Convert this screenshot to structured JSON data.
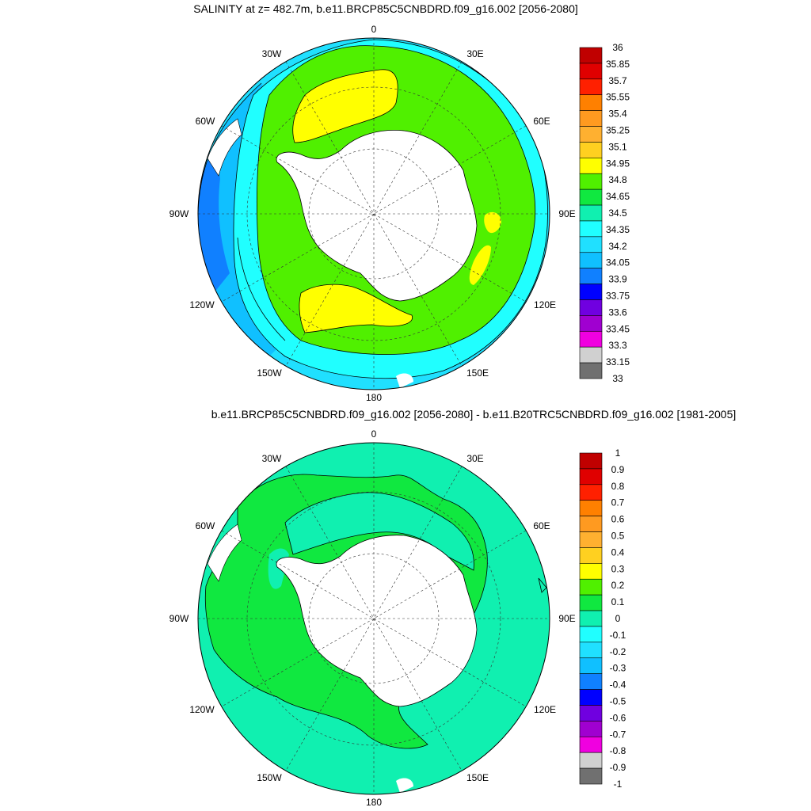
{
  "chart_data": [
    {
      "type": "contour-map",
      "title": "SALINITY at z= 482.7m, b.e11.BRCP85C5CNBDRD.f09_g16.002 [2056-2080]",
      "projection": "south-polar-stereographic",
      "longitude_labels": [
        "0",
        "30E",
        "60E",
        "90E",
        "120E",
        "150E",
        "180",
        "150W",
        "120W",
        "90W",
        "60W",
        "30W"
      ],
      "colorbar": {
        "levels": [
          "36",
          "35.85",
          "35.7",
          "35.55",
          "35.4",
          "35.25",
          "35.1",
          "34.95",
          "34.8",
          "34.65",
          "34.5",
          "34.35",
          "34.2",
          "34.05",
          "33.9",
          "33.75",
          "33.6",
          "33.45",
          "33.3",
          "33.15",
          "33"
        ],
        "colors": [
          "#c00000",
          "#e00000",
          "#ff2000",
          "#ff8000",
          "#ff9a20",
          "#ffb030",
          "#ffd020",
          "#ffff00",
          "#50f000",
          "#10e840",
          "#10f0b0",
          "#20ffff",
          "#20e0ff",
          "#10c0ff",
          "#1080ff",
          "#0000ff",
          "#7000e0",
          "#a000d0",
          "#f000e0",
          "#d0d0d0",
          "#707070"
        ]
      },
      "regions": [
        {
          "range": "34.8-34.95",
          "description": "yellow cores in Weddell gyre, Ross gyre and off East Antarctica"
        },
        {
          "range": "34.65-34.8",
          "description": "green circumpolar ring around continent"
        },
        {
          "range": "34.2-34.65",
          "description": "cyan bands further north"
        },
        {
          "range": "33.9-34.2",
          "description": "blue water near South America"
        }
      ]
    },
    {
      "type": "contour-map",
      "title": "b.e11.BRCP85C5CNBDRD.f09_g16.002 [2056-2080] - b.e11.B20TRC5CNBDRD.f09_g16.002 [1981-2005]",
      "projection": "south-polar-stereographic",
      "longitude_labels": [
        "0",
        "30E",
        "60E",
        "90E",
        "120E",
        "150E",
        "180",
        "150W",
        "120W",
        "90W",
        "60W",
        "30W"
      ],
      "colorbar": {
        "levels": [
          "1",
          "0.9",
          "0.8",
          "0.7",
          "0.6",
          "0.5",
          "0.4",
          "0.3",
          "0.2",
          "0.1",
          "0",
          "-0.1",
          "-0.2",
          "-0.3",
          "-0.4",
          "-0.5",
          "-0.6",
          "-0.7",
          "-0.8",
          "-0.9",
          "-1"
        ],
        "colors": [
          "#c00000",
          "#e00000",
          "#ff2000",
          "#ff8000",
          "#ff9a20",
          "#ffb030",
          "#ffd020",
          "#ffff00",
          "#50f000",
          "#10e840",
          "#10f0b0",
          "#20ffff",
          "#20e0ff",
          "#10c0ff",
          "#1080ff",
          "#0000ff",
          "#7000e0",
          "#a000d0",
          "#f000e0",
          "#d0d0d0",
          "#707070"
        ]
      },
      "regions": [
        {
          "range": "0-0.1",
          "description": "green: most of the Southern Ocean south of the front"
        },
        {
          "range": "-0.1-0",
          "description": "cyan: northern ring and near-coast patches"
        }
      ]
    }
  ]
}
